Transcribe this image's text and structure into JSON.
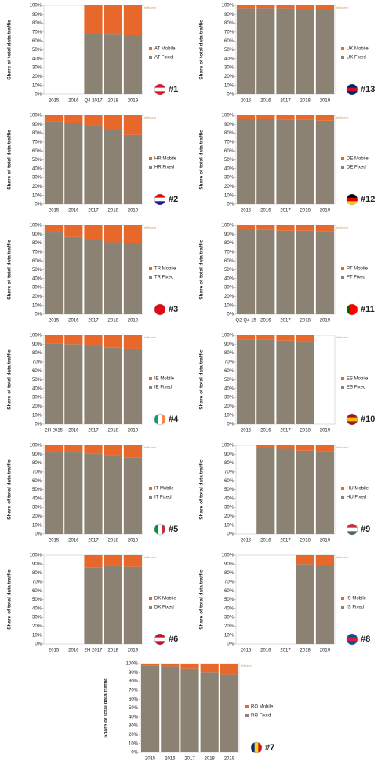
{
  "chart_data": [
    {
      "type": "bar",
      "stacked": true,
      "rank": "#1",
      "watermark": "tefficient",
      "ylabel": "Share of total data traffic",
      "categories": [
        "2015",
        "2016",
        "Q4 2017",
        "2018",
        "2019"
      ],
      "series": [
        {
          "name": "AT Fixed",
          "color": "#8b8273",
          "values": [
            null,
            null,
            69,
            68,
            67
          ]
        },
        {
          "name": "AT Mobile",
          "color": "#e8672a",
          "values": [
            null,
            null,
            31,
            32,
            33
          ]
        }
      ],
      "ylim": [
        0,
        100
      ],
      "yticks": [
        {
          "value": 0,
          "label": "0%"
        },
        {
          "value": 10,
          "label": "10%"
        },
        {
          "value": 20,
          "label": "20%"
        },
        {
          "value": 30,
          "label": "30%"
        },
        {
          "value": 40,
          "label": "40%"
        },
        {
          "value": 50,
          "label": "50%"
        },
        {
          "value": 60,
          "label": "60%"
        },
        {
          "value": 70,
          "label": "70%"
        },
        {
          "value": 80,
          "label": "80%"
        },
        {
          "value": 90,
          "label": "90%"
        },
        {
          "value": 100,
          "label": "100%"
        }
      ]
    },
    {
      "type": "bar",
      "stacked": true,
      "rank": "#13",
      "watermark": "tefficient",
      "ylabel": "Share of total data traffic",
      "categories": [
        "2015",
        "2016",
        "2017",
        "2018",
        "2019"
      ],
      "series": [
        {
          "name": "UK Fixed",
          "color": "#8b8273",
          "values": [
            97,
            97,
            97,
            96,
            96
          ]
        },
        {
          "name": "UK Mobile",
          "color": "#e8672a",
          "values": [
            3,
            3,
            3,
            4,
            4
          ]
        }
      ],
      "ylim": [
        0,
        100
      ],
      "yticks": [
        {
          "value": 0,
          "label": "0%"
        },
        {
          "value": 10,
          "label": "10%"
        },
        {
          "value": 20,
          "label": "20%"
        },
        {
          "value": 30,
          "label": "30%"
        },
        {
          "value": 40,
          "label": "40%"
        },
        {
          "value": 50,
          "label": "50%"
        },
        {
          "value": 60,
          "label": "60%"
        },
        {
          "value": 70,
          "label": "70%"
        },
        {
          "value": 80,
          "label": "80%"
        },
        {
          "value": 90,
          "label": "90%"
        },
        {
          "value": 100,
          "label": "100%"
        }
      ]
    },
    {
      "type": "bar",
      "stacked": true,
      "rank": "#2",
      "watermark": "tefficient",
      "ylabel": "Share of total data traffic",
      "categories": [
        "2015",
        "2016",
        "2017",
        "2018",
        "2019"
      ],
      "series": [
        {
          "name": "HR Fixed",
          "color": "#8b8273",
          "values": [
            93,
            92,
            89,
            84,
            78
          ]
        },
        {
          "name": "HR Mobile",
          "color": "#e8672a",
          "values": [
            7,
            8,
            11,
            16,
            22
          ]
        }
      ],
      "ylim": [
        0,
        100
      ],
      "yticks": [
        {
          "value": 0,
          "label": "0%"
        },
        {
          "value": 10,
          "label": "10%"
        },
        {
          "value": 20,
          "label": "20%"
        },
        {
          "value": 30,
          "label": "30%"
        },
        {
          "value": 40,
          "label": "40%"
        },
        {
          "value": 50,
          "label": "50%"
        },
        {
          "value": 60,
          "label": "60%"
        },
        {
          "value": 70,
          "label": "70%"
        },
        {
          "value": 80,
          "label": "80%"
        },
        {
          "value": 90,
          "label": "90%"
        },
        {
          "value": 100,
          "label": "100%"
        }
      ]
    },
    {
      "type": "bar",
      "stacked": true,
      "rank": "#12",
      "watermark": "tefficient",
      "ylabel": "Share of total data traffic",
      "categories": [
        "2015",
        "2016",
        "2017",
        "2018",
        "2019"
      ],
      "series": [
        {
          "name": "DE Fixed",
          "color": "#8b8273",
          "values": [
            96,
            96,
            95,
            95,
            94
          ]
        },
        {
          "name": "DE Mobile",
          "color": "#e8672a",
          "values": [
            4,
            4,
            5,
            5,
            6
          ]
        }
      ],
      "ylim": [
        0,
        100
      ],
      "yticks": [
        {
          "value": 0,
          "label": "0%"
        },
        {
          "value": 10,
          "label": "10%"
        },
        {
          "value": 20,
          "label": "20%"
        },
        {
          "value": 30,
          "label": "30%"
        },
        {
          "value": 40,
          "label": "40%"
        },
        {
          "value": 50,
          "label": "50%"
        },
        {
          "value": 60,
          "label": "60%"
        },
        {
          "value": 70,
          "label": "70%"
        },
        {
          "value": 80,
          "label": "80%"
        },
        {
          "value": 90,
          "label": "90%"
        },
        {
          "value": 100,
          "label": "100%"
        }
      ]
    },
    {
      "type": "bar",
      "stacked": true,
      "rank": "#3",
      "watermark": "tefficient",
      "ylabel": "Share of total data traffic",
      "categories": [
        "2015",
        "2016",
        "2017",
        "2018",
        "2019"
      ],
      "series": [
        {
          "name": "TR Fixed",
          "color": "#8b8273",
          "values": [
            92,
            87,
            84,
            81,
            80
          ]
        },
        {
          "name": "TR Mobile",
          "color": "#e8672a",
          "values": [
            8,
            13,
            16,
            19,
            20
          ]
        }
      ],
      "ylim": [
        0,
        100
      ],
      "yticks": [
        {
          "value": 0,
          "label": "0%"
        },
        {
          "value": 10,
          "label": "10%"
        },
        {
          "value": 20,
          "label": "20%"
        },
        {
          "value": 30,
          "label": "30%"
        },
        {
          "value": 40,
          "label": "40%"
        },
        {
          "value": 50,
          "label": "50%"
        },
        {
          "value": 60,
          "label": "60%"
        },
        {
          "value": 70,
          "label": "70%"
        },
        {
          "value": 80,
          "label": "80%"
        },
        {
          "value": 90,
          "label": "90%"
        },
        {
          "value": 100,
          "label": "100%"
        }
      ]
    },
    {
      "type": "bar",
      "stacked": true,
      "rank": "#11",
      "watermark": "tefficient",
      "ylabel": "Share of total data traffic",
      "categories": [
        "Q2-Q4 15",
        "2016",
        "2017",
        "2018",
        "2019"
      ],
      "series": [
        {
          "name": "PT Fixed",
          "color": "#8b8273",
          "values": [
            96,
            95,
            94,
            94,
            93
          ]
        },
        {
          "name": "PT Mobile",
          "color": "#e8672a",
          "values": [
            4,
            5,
            6,
            6,
            7
          ]
        }
      ],
      "ylim": [
        0,
        100
      ],
      "yticks": [
        {
          "value": 0,
          "label": "0%"
        },
        {
          "value": 10,
          "label": "10%"
        },
        {
          "value": 20,
          "label": "20%"
        },
        {
          "value": 30,
          "label": "30%"
        },
        {
          "value": 40,
          "label": "40%"
        },
        {
          "value": 50,
          "label": "50%"
        },
        {
          "value": 60,
          "label": "60%"
        },
        {
          "value": 70,
          "label": "70%"
        },
        {
          "value": 80,
          "label": "80%"
        },
        {
          "value": 90,
          "label": "90%"
        },
        {
          "value": 100,
          "label": "100%"
        }
      ]
    },
    {
      "type": "bar",
      "stacked": true,
      "rank": "#4",
      "watermark": "tefficient",
      "ylabel": "Share of total data traffic",
      "categories": [
        "2H 2015",
        "2016",
        "2017",
        "2018",
        "2019"
      ],
      "series": [
        {
          "name": "IE Fixed",
          "color": "#8b8273",
          "values": [
            91,
            90,
            88,
            86,
            85
          ]
        },
        {
          "name": "IE Mobile",
          "color": "#e8672a",
          "values": [
            9,
            10,
            12,
            14,
            15
          ]
        }
      ],
      "ylim": [
        0,
        100
      ],
      "yticks": [
        {
          "value": 0,
          "label": "0%"
        },
        {
          "value": 10,
          "label": "10%"
        },
        {
          "value": 20,
          "label": "20%"
        },
        {
          "value": 30,
          "label": "30%"
        },
        {
          "value": 40,
          "label": "40%"
        },
        {
          "value": 50,
          "label": "50%"
        },
        {
          "value": 60,
          "label": "60%"
        },
        {
          "value": 70,
          "label": "70%"
        },
        {
          "value": 80,
          "label": "80%"
        },
        {
          "value": 90,
          "label": "90%"
        },
        {
          "value": 100,
          "label": "100%"
        }
      ]
    },
    {
      "type": "bar",
      "stacked": true,
      "rank": "#10",
      "watermark": "tefficient",
      "ylabel": "Share of total data traffic",
      "categories": [
        "2015",
        "2016",
        "2017",
        "2018",
        "2019"
      ],
      "series": [
        {
          "name": "ES Fixed",
          "color": "#8b8273",
          "values": [
            95,
            95,
            94,
            93,
            null
          ]
        },
        {
          "name": "ES Mobile",
          "color": "#e8672a",
          "values": [
            5,
            5,
            6,
            7,
            null
          ]
        }
      ],
      "ylim": [
        0,
        100
      ],
      "yticks": [
        {
          "value": 0,
          "label": "0%"
        },
        {
          "value": 10,
          "label": "10%"
        },
        {
          "value": 20,
          "label": "20%"
        },
        {
          "value": 30,
          "label": "30%"
        },
        {
          "value": 40,
          "label": "40%"
        },
        {
          "value": 50,
          "label": "50%"
        },
        {
          "value": 60,
          "label": "60%"
        },
        {
          "value": 70,
          "label": "70%"
        },
        {
          "value": 80,
          "label": "80%"
        },
        {
          "value": 90,
          "label": "90%"
        },
        {
          "value": 100,
          "label": "100%"
        }
      ]
    },
    {
      "type": "bar",
      "stacked": true,
      "rank": "#5",
      "watermark": "tefficient",
      "ylabel": "Share of total data traffic",
      "categories": [
        "2015",
        "2016",
        "2017",
        "2018",
        "2019"
      ],
      "series": [
        {
          "name": "IT Fixed",
          "color": "#8b8273",
          "values": [
            92,
            92,
            91,
            89,
            86
          ]
        },
        {
          "name": "IT Mobile",
          "color": "#e8672a",
          "values": [
            8,
            8,
            9,
            11,
            14
          ]
        }
      ],
      "ylim": [
        0,
        100
      ],
      "yticks": [
        {
          "value": 0,
          "label": "0%"
        },
        {
          "value": 10,
          "label": "10%"
        },
        {
          "value": 20,
          "label": "20%"
        },
        {
          "value": 30,
          "label": "30%"
        },
        {
          "value": 40,
          "label": "40%"
        },
        {
          "value": 50,
          "label": "50%"
        },
        {
          "value": 60,
          "label": "60%"
        },
        {
          "value": 70,
          "label": "70%"
        },
        {
          "value": 80,
          "label": "80%"
        },
        {
          "value": 90,
          "label": "90%"
        },
        {
          "value": 100,
          "label": "100%"
        }
      ]
    },
    {
      "type": "bar",
      "stacked": true,
      "rank": "#9",
      "watermark": "tefficient",
      "ylabel": "Share of total data traffic",
      "categories": [
        "2015",
        "2016",
        "2017",
        "2018",
        "2019"
      ],
      "series": [
        {
          "name": "HU Fixed",
          "color": "#8b8273",
          "values": [
            null,
            97,
            96,
            94,
            93
          ]
        },
        {
          "name": "HU Mobile",
          "color": "#e8672a",
          "values": [
            null,
            3,
            4,
            6,
            7
          ]
        }
      ],
      "ylim": [
        0,
        100
      ],
      "yticks": [
        {
          "value": 0,
          "label": "0%"
        },
        {
          "value": 10,
          "label": "10%"
        },
        {
          "value": 20,
          "label": "20%"
        },
        {
          "value": 30,
          "label": "30%"
        },
        {
          "value": 40,
          "label": "40%"
        },
        {
          "value": 50,
          "label": "50%"
        },
        {
          "value": 60,
          "label": "60%"
        },
        {
          "value": 70,
          "label": "70%"
        },
        {
          "value": 80,
          "label": "80%"
        },
        {
          "value": 90,
          "label": "90%"
        },
        {
          "value": 100,
          "label": "100%"
        }
      ]
    },
    {
      "type": "bar",
      "stacked": true,
      "rank": "#6",
      "watermark": "tefficient",
      "ylabel": "Share of total data traffic",
      "categories": [
        "2015",
        "2016",
        "2H 2017",
        "2018",
        "2019"
      ],
      "series": [
        {
          "name": "DK Fixed",
          "color": "#8b8273",
          "values": [
            null,
            null,
            86,
            88,
            87
          ]
        },
        {
          "name": "DK Mobile",
          "color": "#e8672a",
          "values": [
            null,
            null,
            14,
            12,
            13
          ]
        }
      ],
      "ylim": [
        0,
        100
      ],
      "yticks": [
        {
          "value": 0,
          "label": "0%"
        },
        {
          "value": 10,
          "label": "10%"
        },
        {
          "value": 20,
          "label": "20%"
        },
        {
          "value": 30,
          "label": "30%"
        },
        {
          "value": 40,
          "label": "40%"
        },
        {
          "value": 50,
          "label": "50%"
        },
        {
          "value": 60,
          "label": "60%"
        },
        {
          "value": 70,
          "label": "70%"
        },
        {
          "value": 80,
          "label": "80%"
        },
        {
          "value": 90,
          "label": "90%"
        },
        {
          "value": 100,
          "label": "100%"
        }
      ]
    },
    {
      "type": "bar",
      "stacked": true,
      "rank": "#8",
      "watermark": "tefficient",
      "ylabel": "Share of total data traffic",
      "categories": [
        "2015",
        "2016",
        "2017",
        "2018",
        "2019"
      ],
      "series": [
        {
          "name": "IS Fixed",
          "color": "#8b8273",
          "values": [
            null,
            null,
            null,
            90,
            89
          ]
        },
        {
          "name": "IS Mobile",
          "color": "#e8672a",
          "values": [
            null,
            null,
            null,
            10,
            11
          ]
        }
      ],
      "ylim": [
        0,
        100
      ],
      "yticks": [
        {
          "value": 0,
          "label": "0%"
        },
        {
          "value": 10,
          "label": "10%"
        },
        {
          "value": 20,
          "label": "20%"
        },
        {
          "value": 30,
          "label": "30%"
        },
        {
          "value": 40,
          "label": "40%"
        },
        {
          "value": 50,
          "label": "50%"
        },
        {
          "value": 60,
          "label": "60%"
        },
        {
          "value": 70,
          "label": "70%"
        },
        {
          "value": 80,
          "label": "80%"
        },
        {
          "value": 90,
          "label": "90%"
        },
        {
          "value": 100,
          "label": "100%"
        }
      ]
    },
    {
      "type": "bar",
      "stacked": true,
      "rank": "#7",
      "watermark": "tefficient",
      "ylabel": "Share of total data traffic",
      "categories": [
        "2015",
        "2016",
        "2017",
        "2018",
        "2019"
      ],
      "series": [
        {
          "name": "RO Fixed",
          "color": "#8b8273",
          "values": [
            98,
            97,
            94,
            90,
            88
          ]
        },
        {
          "name": "RO Mobile",
          "color": "#e8672a",
          "values": [
            2,
            3,
            6,
            10,
            12
          ]
        }
      ],
      "ylim": [
        0,
        100
      ],
      "yticks": [
        {
          "value": 0,
          "label": "0%"
        },
        {
          "value": 10,
          "label": "10%"
        },
        {
          "value": 20,
          "label": "20%"
        },
        {
          "value": 30,
          "label": "30%"
        },
        {
          "value": 40,
          "label": "40%"
        },
        {
          "value": 50,
          "label": "50%"
        },
        {
          "value": 60,
          "label": "60%"
        },
        {
          "value": 70,
          "label": "70%"
        },
        {
          "value": 80,
          "label": "80%"
        },
        {
          "value": 90,
          "label": "90%"
        },
        {
          "value": 100,
          "label": "100%"
        }
      ]
    }
  ]
}
